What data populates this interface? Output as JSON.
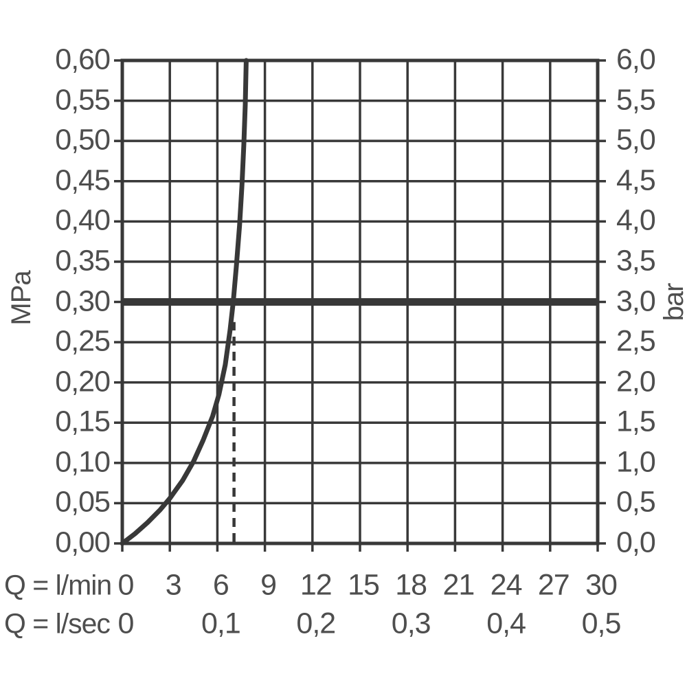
{
  "chart_data": {
    "type": "line",
    "grid": true,
    "colors": {
      "line": "#383838",
      "text": "#4e4e4e",
      "background": "#ffffff"
    },
    "x_axis": {
      "label": "Q = l/min",
      "range": [
        0,
        30
      ],
      "tick_values": [
        0,
        3,
        6,
        9,
        12,
        15,
        18,
        21,
        24,
        27,
        30
      ],
      "tick_labels": [
        "0",
        "3",
        "6",
        "9",
        "12",
        "15",
        "18",
        "21",
        "24",
        "27",
        "30"
      ]
    },
    "x_axis_secondary": {
      "label": "Q = l/sec",
      "ticks": [
        {
          "label": "0",
          "at_lmin": 0
        },
        {
          "label": "0,1",
          "at_lmin": 6
        },
        {
          "label": "0,2",
          "at_lmin": 12
        },
        {
          "label": "0,3",
          "at_lmin": 18
        },
        {
          "label": "0,4",
          "at_lmin": 24
        },
        {
          "label": "0,5",
          "at_lmin": 30
        }
      ]
    },
    "y_axis_left": {
      "label": "MPa",
      "range": [
        0,
        0.6
      ],
      "tick_values": [
        0,
        0.05,
        0.1,
        0.15,
        0.2,
        0.25,
        0.3,
        0.35,
        0.4,
        0.45,
        0.5,
        0.55,
        0.6
      ],
      "tick_labels": [
        "0,00",
        "0,05",
        "0,10",
        "0,15",
        "0,20",
        "0,25",
        "0,30",
        "0,35",
        "0,40",
        "0,45",
        "0,50",
        "0,55",
        "0,60"
      ]
    },
    "y_axis_right": {
      "label": "bar",
      "range": [
        0,
        6
      ],
      "tick_values": [
        0,
        0.5,
        1.0,
        1.5,
        2.0,
        2.5,
        3.0,
        3.5,
        4.0,
        4.5,
        5.0,
        5.5,
        6.0
      ],
      "tick_labels": [
        "0,0",
        "0,5",
        "1,0",
        "1,5",
        "2,0",
        "2,5",
        "3,0",
        "3,5",
        "4,0",
        "4,5",
        "5,0",
        "5,5",
        "6,0"
      ]
    },
    "series": [
      {
        "name": "pressure-flow-curve",
        "points_lmin_mpa": [
          [
            0,
            0
          ],
          [
            0.8,
            0.012
          ],
          [
            1.6,
            0.026
          ],
          [
            2.4,
            0.042
          ],
          [
            3.0,
            0.056
          ],
          [
            3.8,
            0.078
          ],
          [
            4.5,
            0.102
          ],
          [
            5.1,
            0.128
          ],
          [
            5.7,
            0.158
          ],
          [
            6.1,
            0.185
          ],
          [
            6.5,
            0.222
          ],
          [
            6.8,
            0.265
          ],
          [
            7.0,
            0.3
          ],
          [
            7.2,
            0.345
          ],
          [
            7.4,
            0.395
          ],
          [
            7.55,
            0.445
          ],
          [
            7.67,
            0.495
          ],
          [
            7.76,
            0.545
          ],
          [
            7.82,
            0.6
          ]
        ]
      }
    ],
    "reference_line": {
      "mpa": 0.3,
      "bar": 3.0
    },
    "dashed_line": {
      "lmin": 7.05,
      "from_mpa": 0,
      "to_mpa": 0.275
    }
  }
}
